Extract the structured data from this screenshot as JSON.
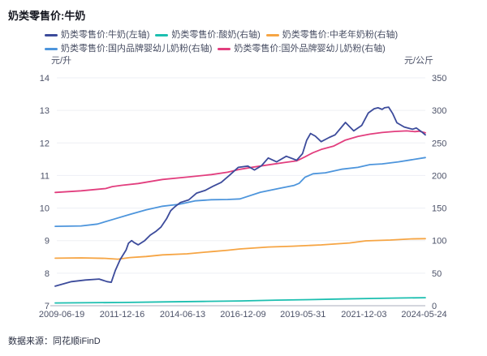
{
  "page": {
    "title": "奶类零售价:牛奶",
    "source": "数据来源：同花顺iFinD"
  },
  "chart_data": {
    "type": "line",
    "title": "奶类零售价:牛奶",
    "grid": true,
    "legend_position": "top",
    "colors": {
      "milk": "#3c4b9b",
      "yogurt": "#1cbfb0",
      "elderly_powder": "#f6a544",
      "domestic_formula": "#4d95dc",
      "foreign_formula": "#e23e7e",
      "gridline": "#edeff4",
      "axis_line": "#a9adbb"
    },
    "left_axis": {
      "unit": "元/升",
      "min": 7,
      "max": 14,
      "ticks": [
        14,
        13,
        12,
        11,
        10,
        9,
        8,
        7
      ]
    },
    "right_axis": {
      "unit": "元/公斤",
      "min": 0,
      "max": 350,
      "ticks": [
        350,
        300,
        250,
        200,
        150,
        100,
        50,
        0
      ]
    },
    "x_range": [
      2009.2,
      2024.45
    ],
    "x_ticks": [
      {
        "label": "2009-06-19",
        "t": 2009.47
      },
      {
        "label": "2011-12-16",
        "t": 2011.96
      },
      {
        "label": "2014-06-13",
        "t": 2014.45
      },
      {
        "label": "2016-12-09",
        "t": 2016.94
      },
      {
        "label": "2019-05-31",
        "t": 2019.41
      },
      {
        "label": "2021-12-03",
        "t": 2021.92
      },
      {
        "label": "2024-05-24",
        "t": 2024.4
      }
    ],
    "series": [
      {
        "key": "milk",
        "name": "奶类零售价:牛奶(左轴)",
        "axis": "left",
        "color": "#3c4b9b",
        "points": [
          [
            2009.2,
            7.6
          ],
          [
            2009.87,
            7.74
          ],
          [
            2010.44,
            7.79
          ],
          [
            2011.01,
            7.82
          ],
          [
            2011.34,
            7.74
          ],
          [
            2011.51,
            7.72
          ],
          [
            2011.68,
            8.09
          ],
          [
            2011.88,
            8.42
          ],
          [
            2012.12,
            8.71
          ],
          [
            2012.22,
            8.92
          ],
          [
            2012.35,
            9.0
          ],
          [
            2012.45,
            8.94
          ],
          [
            2012.62,
            8.87
          ],
          [
            2012.89,
            9.0
          ],
          [
            2013.12,
            9.17
          ],
          [
            2013.36,
            9.29
          ],
          [
            2013.56,
            9.42
          ],
          [
            2013.79,
            9.67
          ],
          [
            2013.96,
            9.92
          ],
          [
            2014.13,
            10.04
          ],
          [
            2014.36,
            10.17
          ],
          [
            2014.7,
            10.25
          ],
          [
            2015.03,
            10.46
          ],
          [
            2015.37,
            10.54
          ],
          [
            2015.7,
            10.67
          ],
          [
            2016.04,
            10.79
          ],
          [
            2016.37,
            11.0
          ],
          [
            2016.74,
            11.25
          ],
          [
            2017.14,
            11.29
          ],
          [
            2017.41,
            11.17
          ],
          [
            2017.7,
            11.3
          ],
          [
            2017.98,
            11.54
          ],
          [
            2018.32,
            11.42
          ],
          [
            2018.72,
            11.59
          ],
          [
            2019.15,
            11.47
          ],
          [
            2019.39,
            11.67
          ],
          [
            2019.56,
            12.08
          ],
          [
            2019.72,
            12.29
          ],
          [
            2019.92,
            12.21
          ],
          [
            2020.16,
            12.04
          ],
          [
            2020.49,
            12.17
          ],
          [
            2020.73,
            12.25
          ],
          [
            2021.16,
            12.63
          ],
          [
            2021.5,
            12.37
          ],
          [
            2021.83,
            12.54
          ],
          [
            2022.1,
            12.92
          ],
          [
            2022.34,
            13.05
          ],
          [
            2022.5,
            13.08
          ],
          [
            2022.67,
            13.03
          ],
          [
            2022.77,
            13.08
          ],
          [
            2022.94,
            13.1
          ],
          [
            2023.11,
            12.9
          ],
          [
            2023.28,
            12.62
          ],
          [
            2023.58,
            12.49
          ],
          [
            2023.92,
            12.42
          ],
          [
            2024.08,
            12.46
          ],
          [
            2024.3,
            12.34
          ],
          [
            2024.45,
            12.25
          ]
        ]
      },
      {
        "key": "yogurt",
        "name": "奶类零售价:酸奶(右轴)",
        "axis": "right",
        "color": "#1cbfb0",
        "points": [
          [
            2009.2,
            4.2
          ],
          [
            2011.95,
            5.0
          ],
          [
            2013.62,
            5.9
          ],
          [
            2015.3,
            6.6
          ],
          [
            2016.81,
            7.4
          ],
          [
            2018.32,
            8.6
          ],
          [
            2019.66,
            9.3
          ],
          [
            2021.0,
            10.4
          ],
          [
            2022.34,
            11.2
          ],
          [
            2023.34,
            11.8
          ],
          [
            2024.45,
            12.3
          ]
        ]
      },
      {
        "key": "elderly_powder",
        "name": "奶类零售价:中老年奶粉(右轴)",
        "axis": "right",
        "color": "#f6a544",
        "points": [
          [
            2009.2,
            73
          ],
          [
            2010.27,
            73.5
          ],
          [
            2011.28,
            72.7
          ],
          [
            2011.78,
            71.5
          ],
          [
            2012.28,
            74
          ],
          [
            2012.95,
            75.6
          ],
          [
            2013.62,
            78.1
          ],
          [
            2014.63,
            79.7
          ],
          [
            2015.63,
            83.1
          ],
          [
            2016.3,
            85.2
          ],
          [
            2016.81,
            87.2
          ],
          [
            2017.98,
            90.2
          ],
          [
            2018.98,
            91.4
          ],
          [
            2020.16,
            93.4
          ],
          [
            2021.33,
            96.4
          ],
          [
            2022.0,
            99.6
          ],
          [
            2023.01,
            100.9
          ],
          [
            2023.85,
            102.6
          ],
          [
            2024.45,
            103
          ]
        ]
      },
      {
        "key": "domestic_formula",
        "name": "奶类零售价:国内品牌婴幼儿奶粉(右轴)",
        "axis": "right",
        "color": "#4d95dc",
        "points": [
          [
            2009.2,
            122
          ],
          [
            2010.27,
            122.5
          ],
          [
            2010.94,
            125.4
          ],
          [
            2011.61,
            132.9
          ],
          [
            2012.28,
            140.3
          ],
          [
            2012.95,
            147.4
          ],
          [
            2013.62,
            152.8
          ],
          [
            2014.29,
            155.7
          ],
          [
            2014.96,
            161.1
          ],
          [
            2015.63,
            162.8
          ],
          [
            2016.3,
            163.2
          ],
          [
            2016.81,
            164
          ],
          [
            2017.65,
            174.3
          ],
          [
            2018.48,
            180.6
          ],
          [
            2019.05,
            184.8
          ],
          [
            2019.25,
            188
          ],
          [
            2019.49,
            197.3
          ],
          [
            2019.82,
            202.6
          ],
          [
            2020.33,
            204.2
          ],
          [
            2021.0,
            209.6
          ],
          [
            2021.67,
            212.5
          ],
          [
            2022.17,
            216.7
          ],
          [
            2022.67,
            217.9
          ],
          [
            2023.34,
            221
          ],
          [
            2023.85,
            224
          ],
          [
            2024.45,
            227.5
          ]
        ]
      },
      {
        "key": "foreign_formula",
        "name": "奶类零售价:国外品牌婴幼儿奶粉(右轴)",
        "axis": "right",
        "color": "#e23e7e",
        "points": [
          [
            2009.2,
            174
          ],
          [
            2010.27,
            176.5
          ],
          [
            2011.28,
            180
          ],
          [
            2011.55,
            183
          ],
          [
            2011.95,
            185
          ],
          [
            2012.62,
            187.7
          ],
          [
            2013.62,
            193.9
          ],
          [
            2014.63,
            197.6
          ],
          [
            2015.63,
            201.4
          ],
          [
            2016.3,
            205
          ],
          [
            2016.81,
            209.5
          ],
          [
            2017.31,
            212.6
          ],
          [
            2017.98,
            216.3
          ],
          [
            2018.65,
            220
          ],
          [
            2019.15,
            222.5
          ],
          [
            2019.49,
            228.7
          ],
          [
            2019.82,
            235
          ],
          [
            2020.16,
            240
          ],
          [
            2020.66,
            245
          ],
          [
            2021.16,
            254.5
          ],
          [
            2021.67,
            260
          ],
          [
            2022.17,
            263.6
          ],
          [
            2022.67,
            266
          ],
          [
            2023.18,
            267.7
          ],
          [
            2023.68,
            268.6
          ],
          [
            2024.02,
            267.4
          ],
          [
            2024.2,
            268
          ],
          [
            2024.45,
            265.5
          ]
        ]
      }
    ]
  }
}
